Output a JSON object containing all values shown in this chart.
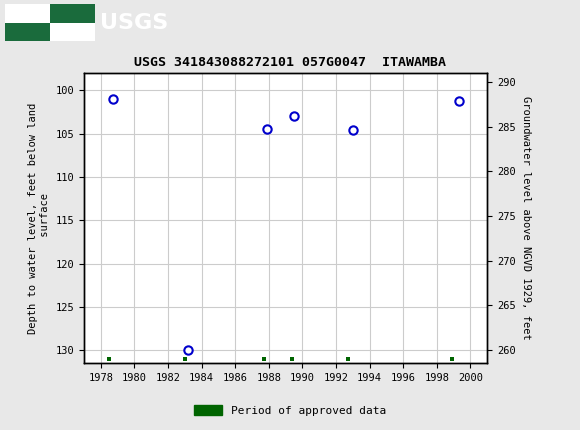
{
  "title": "USGS 341843088272101 057G0047  ITAWAMBA",
  "ylabel_left": "Depth to water level, feet below land\n surface",
  "ylabel_right": "Groundwater level above NGVD 1929, feet",
  "x_data": [
    1978.7,
    1983.2,
    1987.9,
    1989.5,
    1993.0,
    1999.3
  ],
  "y_data_depth": [
    101.0,
    130.0,
    104.5,
    103.0,
    104.6,
    101.2
  ],
  "ylim_left": [
    131.5,
    98.0
  ],
  "ylim_right": [
    258.5,
    291.0
  ],
  "xlim": [
    1977,
    2001
  ],
  "xticks": [
    1978,
    1980,
    1982,
    1984,
    1986,
    1988,
    1990,
    1992,
    1994,
    1996,
    1998,
    2000
  ],
  "yticks_left": [
    100,
    105,
    110,
    115,
    120,
    125,
    130
  ],
  "yticks_right": [
    290,
    285,
    280,
    275,
    270,
    265,
    260
  ],
  "marker_color": "#0000CC",
  "marker_facecolor": "white",
  "marker_size": 6,
  "grid_color": "#CCCCCC",
  "approved_data_color": "#006400",
  "approved_x": [
    1978.5,
    1983.0,
    1987.7,
    1989.4,
    1992.7,
    1998.9
  ],
  "header_bg": "#1a6b3c",
  "bg_color": "#e8e8e8",
  "plot_bg": "#FFFFFF",
  "font_family": "monospace",
  "legend_label": "Period of approved data"
}
